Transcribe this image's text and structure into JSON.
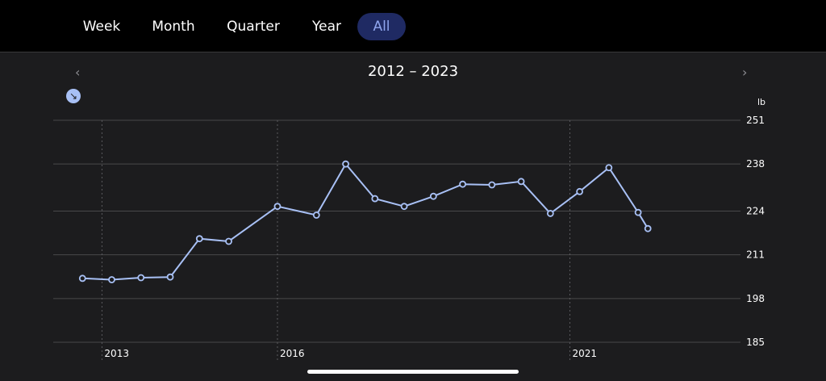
{
  "tabs": [
    {
      "label": "Week",
      "active": false
    },
    {
      "label": "Month",
      "active": false
    },
    {
      "label": "Quarter",
      "active": false
    },
    {
      "label": "Year",
      "active": false
    },
    {
      "label": "All",
      "active": true
    }
  ],
  "range_title": "2012 – 2023",
  "nav": {
    "prev": "‹",
    "next": "›"
  },
  "trend_icon": "↘",
  "colors": {
    "line": "#a8c0f5",
    "accent_bg": "#1f2a63",
    "accent_text": "#8fa5ee"
  },
  "chart_data": {
    "type": "line",
    "title": "",
    "xlabel": "",
    "ylabel": "",
    "unit": "lb",
    "x_ticks": [
      "2013",
      "2016",
      "2021"
    ],
    "y_ticks": [
      251,
      238,
      224,
      211,
      198,
      185
    ],
    "ylim": [
      185,
      251
    ],
    "xlim": [
      "2012-03",
      "2023-12"
    ],
    "grid": {
      "horizontal": true,
      "vertical_dotted": true
    },
    "series": [
      {
        "values": [
          {
            "x": "2012-09",
            "y": 204.0
          },
          {
            "x": "2013-03",
            "y": 203.6
          },
          {
            "x": "2013-09",
            "y": 204.2
          },
          {
            "x": "2014-03",
            "y": 204.4
          },
          {
            "x": "2014-09",
            "y": 215.8
          },
          {
            "x": "2015-03",
            "y": 215.0
          },
          {
            "x": "2016-01",
            "y": 225.4
          },
          {
            "x": "2016-09",
            "y": 222.8
          },
          {
            "x": "2017-03",
            "y": 238.0
          },
          {
            "x": "2017-09",
            "y": 227.7
          },
          {
            "x": "2018-03",
            "y": 225.4
          },
          {
            "x": "2018-09",
            "y": 228.4
          },
          {
            "x": "2019-03",
            "y": 232.0
          },
          {
            "x": "2019-09",
            "y": 231.8
          },
          {
            "x": "2020-03",
            "y": 232.8
          },
          {
            "x": "2020-09",
            "y": 223.3
          },
          {
            "x": "2021-03",
            "y": 229.8
          },
          {
            "x": "2021-09",
            "y": 236.9
          },
          {
            "x": "2022-03",
            "y": 223.6
          },
          {
            "x": "2022-05",
            "y": 218.8
          }
        ]
      }
    ]
  }
}
